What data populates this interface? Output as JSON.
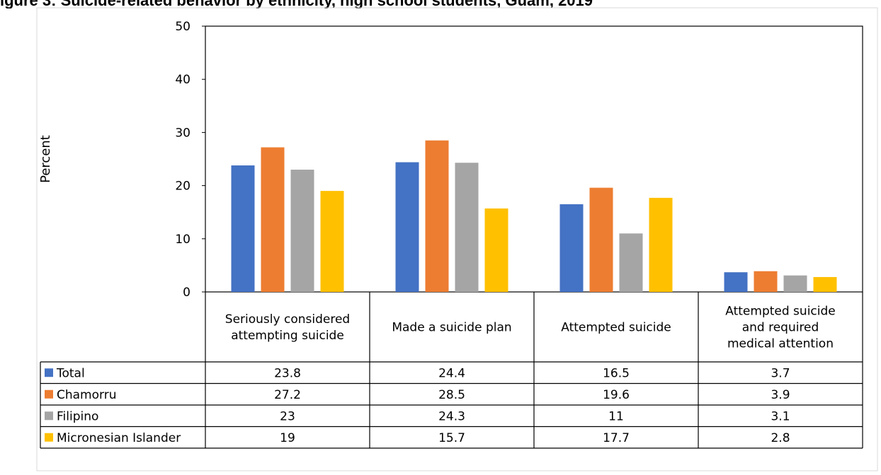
{
  "header": {
    "partial_title": "igure 3: Suicide-related behavior by ethnicity, high school students, Guam, 2019"
  },
  "chart_data": {
    "type": "bar",
    "ylabel": "Percent",
    "ylim": [
      0,
      50
    ],
    "yticks": [
      0,
      10,
      20,
      30,
      40,
      50
    ],
    "grid": false,
    "legend": "data-table",
    "categories": [
      "Seriously considered attempting suicide",
      "Made a suicide plan",
      "Attempted suicide",
      "Attempted suicide and required medical attention"
    ],
    "category_lines": [
      [
        "Seriously considered",
        "attempting suicide"
      ],
      [
        "Made a suicide plan"
      ],
      [
        "Attempted suicide"
      ],
      [
        "Attempted suicide",
        "and required",
        "medical attention"
      ]
    ],
    "series": [
      {
        "name": "Total",
        "color": "#4472C4",
        "values": [
          23.8,
          24.4,
          16.5,
          3.7
        ],
        "labels": [
          "23.8",
          "24.4",
          "16.5",
          "3.7"
        ]
      },
      {
        "name": "Chamorru",
        "color": "#ED7D31",
        "values": [
          27.2,
          28.5,
          19.6,
          3.9
        ],
        "labels": [
          "27.2",
          "28.5",
          "19.6",
          "3.9"
        ]
      },
      {
        "name": "Filipino",
        "color": "#A5A5A5",
        "values": [
          23,
          24.3,
          11,
          3.1
        ],
        "labels": [
          "23",
          "24.3",
          "11",
          "3.1"
        ]
      },
      {
        "name": "Micronesian Islander",
        "color": "#FFC000",
        "values": [
          19,
          15.7,
          17.7,
          2.8
        ],
        "labels": [
          "19",
          "15.7",
          "17.7",
          "2.8"
        ]
      }
    ]
  }
}
